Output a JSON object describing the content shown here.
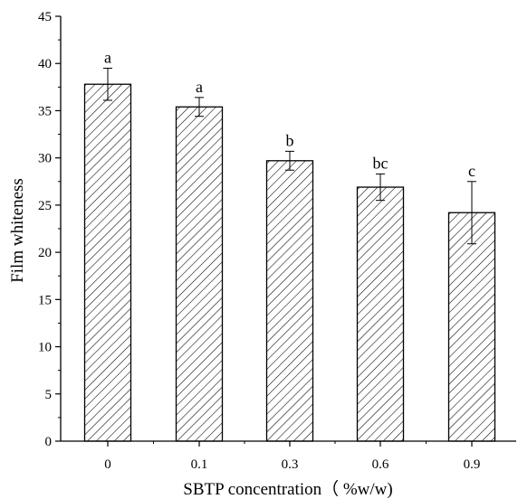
{
  "chart_data": {
    "type": "bar",
    "title": "",
    "xlabel": "SBTP concentration（ %w/w)",
    "ylabel": "Film whiteness",
    "categories": [
      "0",
      "0.1",
      "0.3",
      "0.6",
      "0.9"
    ],
    "values": [
      37.8,
      35.4,
      29.7,
      26.9,
      24.2
    ],
    "errors": [
      1.7,
      1.0,
      1.0,
      1.4,
      3.3
    ],
    "significance": [
      "a",
      "a",
      "b",
      "bc",
      "c"
    ],
    "ylim": [
      0,
      45
    ],
    "yticks": [
      "0",
      "5",
      "10",
      "15",
      "20",
      "25",
      "30",
      "35",
      "40",
      "45"
    ],
    "bar_fill": "hatched",
    "grid": false,
    "legend": "none",
    "colors": {
      "bar_edge": "#000000",
      "hatch": "#000000",
      "background": "#ffffff"
    }
  }
}
